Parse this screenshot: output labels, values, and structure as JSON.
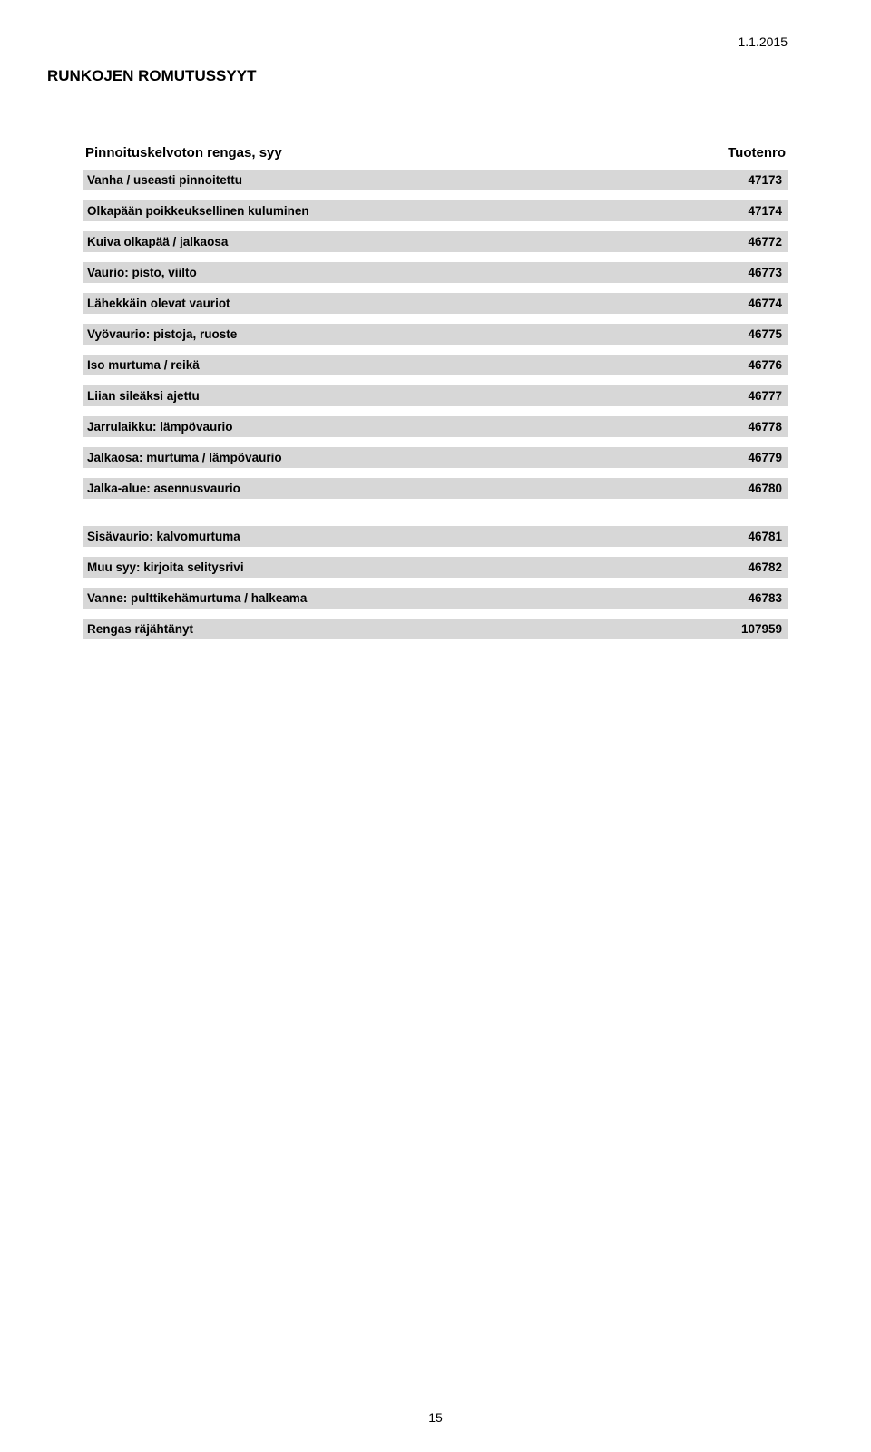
{
  "date": "1.1.2015",
  "title": "RUNKOJEN ROMUTUSSYYT",
  "header": {
    "label": "Pinnoituskelvoton rengas, syy",
    "value_heading": "Tuotenro"
  },
  "groups": [
    {
      "rows": [
        {
          "label": "Vanha / useasti pinnoitettu",
          "value": "47173"
        },
        {
          "label": "Olkapään poikkeuksellinen kuluminen",
          "value": "47174"
        },
        {
          "label": "Kuiva olkapää / jalkaosa",
          "value": "46772"
        },
        {
          "label": "Vaurio: pisto, viilto",
          "value": "46773"
        },
        {
          "label": "Lähekkäin olevat vauriot",
          "value": "46774"
        },
        {
          "label": "Vyövaurio: pistoja, ruoste",
          "value": "46775"
        },
        {
          "label": "Iso murtuma / reikä",
          "value": "46776"
        },
        {
          "label": "Liian sileäksi ajettu",
          "value": "46777"
        },
        {
          "label": "Jarrulaikku: lämpövaurio",
          "value": "46778"
        },
        {
          "label": "Jalkaosa: murtuma / lämpövaurio",
          "value": "46779"
        },
        {
          "label": "Jalka-alue: asennusvaurio",
          "value": "46780"
        }
      ]
    },
    {
      "rows": [
        {
          "label": "Sisävaurio: kalvomurtuma",
          "value": "46781"
        },
        {
          "label": "Muu syy: kirjoita selitysrivi",
          "value": "46782"
        },
        {
          "label": "Vanne: pulttikehämurtuma / halkeama",
          "value": "46783"
        },
        {
          "label": "Rengas räjähtänyt",
          "value": "107959"
        }
      ]
    }
  ],
  "page_number": "15"
}
